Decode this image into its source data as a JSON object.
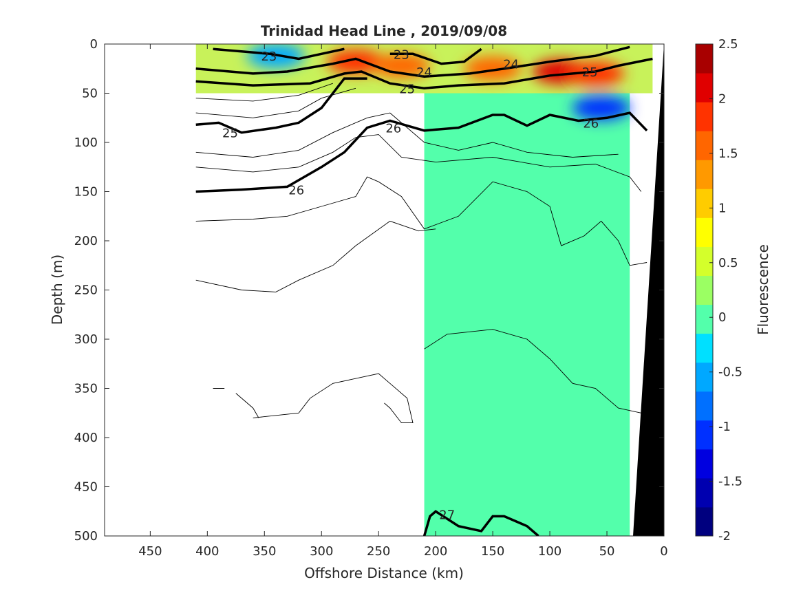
{
  "chart_data": {
    "type": "heatmap",
    "title": "Trinidad Head Line , 2019/09/08",
    "xlabel": "Offshore Distance (km)",
    "ylabel": "Depth (m)",
    "xlim": [
      490,
      0
    ],
    "ylim": [
      0,
      500
    ],
    "x_ticks": [
      450,
      400,
      350,
      300,
      250,
      200,
      150,
      100,
      50,
      0
    ],
    "y_ticks": [
      0,
      50,
      100,
      150,
      200,
      250,
      300,
      350,
      400,
      450,
      500
    ],
    "colorbar": {
      "label": "Fluorescence",
      "range": [
        -2,
        2.5
      ],
      "ticks": [
        2.5,
        2,
        1.5,
        1,
        0.5,
        0,
        -0.5,
        -1,
        -1.5,
        -2
      ],
      "colors": [
        "#00007f",
        "#0000b0",
        "#0000e0",
        "#0030ff",
        "#0070ff",
        "#00a8ff",
        "#00e0ff",
        "#53ffab",
        "#9bff63",
        "#d4ff2b",
        "#ffff00",
        "#ffcc00",
        "#ff9900",
        "#ff6600",
        "#ff3300",
        "#e00000",
        "#a80000"
      ]
    },
    "background_fluorescence": 0.1,
    "surface_features": [
      {
        "name": "low",
        "x": 340,
        "y": 12,
        "value": -0.6
      },
      {
        "name": "low",
        "x": 55,
        "y": 65,
        "value": -1.0
      },
      {
        "name": "high",
        "x": 270,
        "y": 18,
        "value": 1.8
      },
      {
        "name": "high",
        "x": 230,
        "y": 22,
        "value": 1.6
      },
      {
        "name": "high",
        "x": 90,
        "y": 28,
        "value": 2.0
      },
      {
        "name": "high",
        "x": 150,
        "y": 25,
        "value": 1.6
      },
      {
        "name": "high",
        "x": 60,
        "y": 30,
        "value": 1.8
      }
    ],
    "density_contours": [
      {
        "level": "23",
        "points": [
          [
            395,
            5
          ],
          [
            345,
            10
          ],
          [
            320,
            15
          ],
          [
            300,
            10
          ],
          [
            280,
            5
          ]
        ]
      },
      {
        "level": "23",
        "points": [
          [
            240,
            10
          ],
          [
            220,
            10
          ],
          [
            195,
            20
          ],
          [
            175,
            18
          ],
          [
            160,
            5
          ]
        ]
      },
      {
        "level": "24",
        "points": [
          [
            410,
            25
          ],
          [
            360,
            30
          ],
          [
            330,
            28
          ],
          [
            290,
            20
          ],
          [
            270,
            15
          ],
          [
            240,
            28
          ],
          [
            210,
            33
          ],
          [
            170,
            30
          ],
          [
            140,
            25
          ],
          [
            100,
            18
          ],
          [
            60,
            12
          ],
          [
            30,
            3
          ]
        ]
      },
      {
        "level": "25",
        "points": [
          [
            410,
            38
          ],
          [
            360,
            42
          ],
          [
            310,
            40
          ],
          [
            280,
            30
          ],
          [
            265,
            28
          ],
          [
            240,
            40
          ],
          [
            210,
            45
          ],
          [
            180,
            42
          ],
          [
            140,
            40
          ],
          [
            100,
            32
          ],
          [
            60,
            28
          ],
          [
            40,
            22
          ],
          [
            10,
            15
          ]
        ]
      },
      {
        "level": "25",
        "points": [
          [
            410,
            82
          ],
          [
            390,
            80
          ],
          [
            370,
            90
          ],
          [
            340,
            85
          ],
          [
            320,
            80
          ],
          [
            300,
            65
          ],
          [
            280,
            35
          ],
          [
            260,
            35
          ]
        ]
      },
      {
        "level": "26",
        "points": [
          [
            410,
            150
          ],
          [
            370,
            148
          ],
          [
            330,
            145
          ],
          [
            300,
            125
          ],
          [
            280,
            110
          ],
          [
            260,
            85
          ],
          [
            240,
            78
          ],
          [
            210,
            88
          ],
          [
            180,
            85
          ],
          [
            150,
            72
          ],
          [
            140,
            72
          ],
          [
            120,
            83
          ],
          [
            100,
            72
          ],
          [
            75,
            78
          ],
          [
            50,
            75
          ],
          [
            30,
            70
          ],
          [
            15,
            88
          ]
        ]
      },
      {
        "level": "27",
        "points": [
          [
            210,
            500
          ],
          [
            205,
            480
          ],
          [
            200,
            475
          ],
          [
            180,
            490
          ],
          [
            160,
            495
          ],
          [
            150,
            480
          ],
          [
            140,
            480
          ],
          [
            120,
            490
          ],
          [
            110,
            500
          ]
        ]
      }
    ],
    "contour_labels": [
      "23",
      "23",
      "24",
      "24",
      "25",
      "25",
      "25",
      "26",
      "26",
      "26",
      "27"
    ]
  }
}
